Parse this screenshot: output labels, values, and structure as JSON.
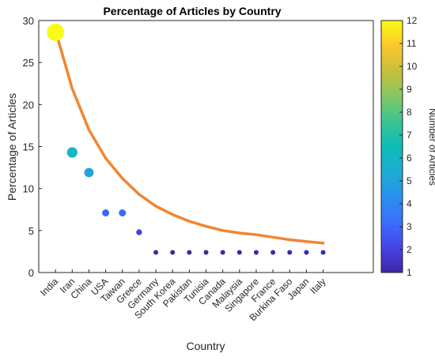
{
  "chart_data": {
    "type": "scatter",
    "title": "Percentage of Articles by Country",
    "xlabel": "Country",
    "ylabel": "Percentage of Articles",
    "colorbar_label": "Number of Articles",
    "categories": [
      "India",
      "Iran",
      "China",
      "USA",
      "Taiwan",
      "Greece",
      "Germany",
      "South Korea",
      "Pakistan",
      "Tunisia",
      "Canada",
      "Malaysia",
      "Singapore",
      "France",
      "Burkina Faso",
      "Japan",
      "Italy"
    ],
    "percentages": [
      28.6,
      14.3,
      11.9,
      7.1,
      7.1,
      4.8,
      2.4,
      2.4,
      2.4,
      2.4,
      2.4,
      2.4,
      2.4,
      2.4,
      2.4,
      2.4,
      2.4
    ],
    "article_counts": [
      12,
      6,
      5,
      3,
      3,
      2,
      1,
      1,
      1,
      1,
      1,
      1,
      1,
      1,
      1,
      1,
      1
    ],
    "fit_curve": {
      "x_start": 1,
      "x_end": 17,
      "y": [
        28.8,
        21.9,
        17.0,
        13.6,
        11.2,
        9.3,
        7.9,
        6.9,
        6.1,
        5.5,
        5.0,
        4.7,
        4.5,
        4.2,
        3.9,
        3.7,
        3.5
      ],
      "color": "#f28530"
    },
    "ylim": [
      0,
      30
    ],
    "yticks": [
      0,
      5,
      10,
      15,
      20,
      25,
      30
    ],
    "clim": [
      1,
      12
    ],
    "cticks": [
      1,
      2,
      3,
      4,
      5,
      6,
      7,
      8,
      9,
      10,
      11,
      12
    ],
    "colormap": "parula",
    "grid": false
  }
}
